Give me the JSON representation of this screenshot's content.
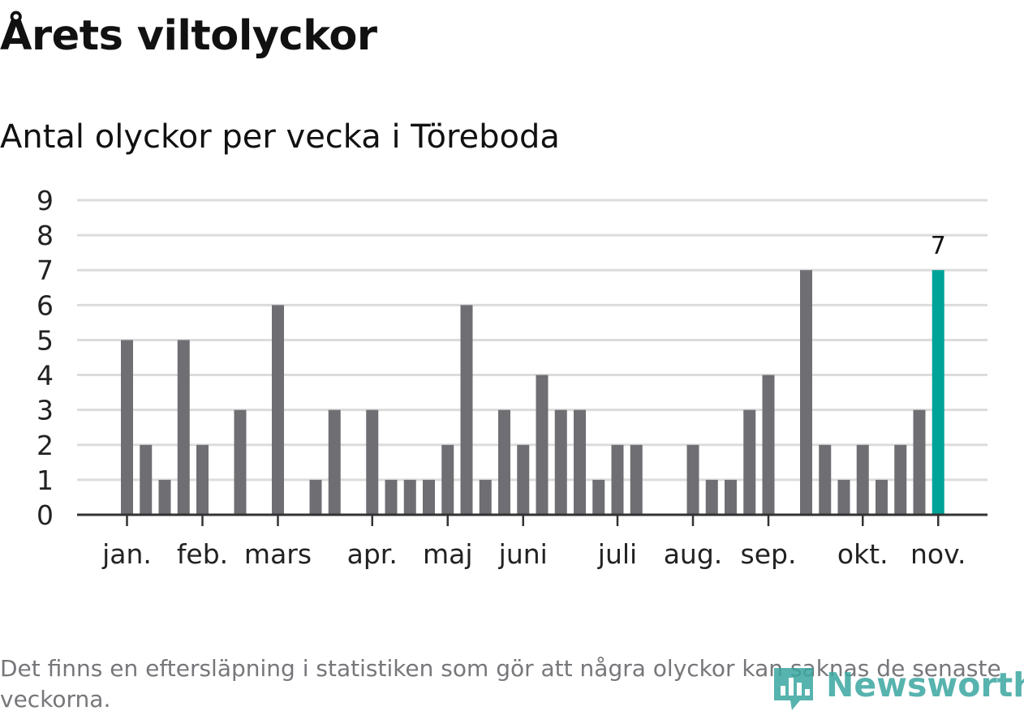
{
  "title": "Årets viltolyckor",
  "subtitle": "Antal olyckor per vecka i Töreboda",
  "footnote": "Det finns en eftersläpning i statistiken som gör att några olyckor kan saknas de senaste veckorna.",
  "logo_text": "Newsworthy",
  "colors": {
    "bar": "#6f6e73",
    "highlight": "#00a398",
    "grid": "#dcdcdc",
    "axis": "#333333",
    "text": "#111111",
    "muted": "#77777b"
  },
  "chart_data": {
    "type": "bar",
    "ylim": [
      0,
      9
    ],
    "yticks": [
      0,
      1,
      2,
      3,
      4,
      5,
      6,
      7,
      8,
      9
    ],
    "grid": true,
    "week_values": [
      0,
      0,
      5,
      2,
      1,
      5,
      2,
      0,
      3,
      0,
      6,
      0,
      1,
      3,
      0,
      3,
      1,
      1,
      1,
      2,
      6,
      1,
      3,
      2,
      4,
      3,
      3,
      1,
      2,
      2,
      0,
      0,
      2,
      1,
      1,
      3,
      4,
      0,
      7,
      2,
      1,
      2,
      1,
      2,
      3,
      7
    ],
    "highlight_index": 45,
    "highlight_label": "7",
    "month_labels": [
      {
        "label": "jan.",
        "week_index": 2
      },
      {
        "label": "feb.",
        "week_index": 6
      },
      {
        "label": "mars",
        "week_index": 10
      },
      {
        "label": "apr.",
        "week_index": 15
      },
      {
        "label": "maj",
        "week_index": 19
      },
      {
        "label": "juni",
        "week_index": 23
      },
      {
        "label": "juli",
        "week_index": 28
      },
      {
        "label": "aug.",
        "week_index": 32
      },
      {
        "label": "sep.",
        "week_index": 36
      },
      {
        "label": "okt.",
        "week_index": 41
      },
      {
        "label": "nov.",
        "week_index": 45
      }
    ]
  }
}
